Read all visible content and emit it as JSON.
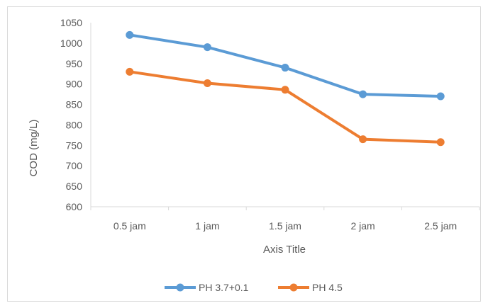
{
  "chart_data": {
    "type": "line",
    "title": "",
    "categories": [
      "0.5 jam",
      "1 jam",
      "1.5 jam",
      "2 jam",
      "2.5 jam"
    ],
    "series": [
      {
        "name": "PH 3.7+0.1",
        "values": [
          1020,
          990,
          940,
          875,
          870
        ],
        "color": "#5b9bd5"
      },
      {
        "name": "PH 4.5",
        "values": [
          930,
          902,
          886,
          765,
          758
        ],
        "color": "#ed7d31"
      }
    ],
    "xlabel": "Axis Title",
    "ylabel": "COD (mg/L)",
    "ylim": [
      600,
      1050
    ],
    "yticks": [
      600,
      650,
      700,
      750,
      800,
      850,
      900,
      950,
      1000,
      1050
    ],
    "grid": false,
    "legend": "bottom"
  }
}
